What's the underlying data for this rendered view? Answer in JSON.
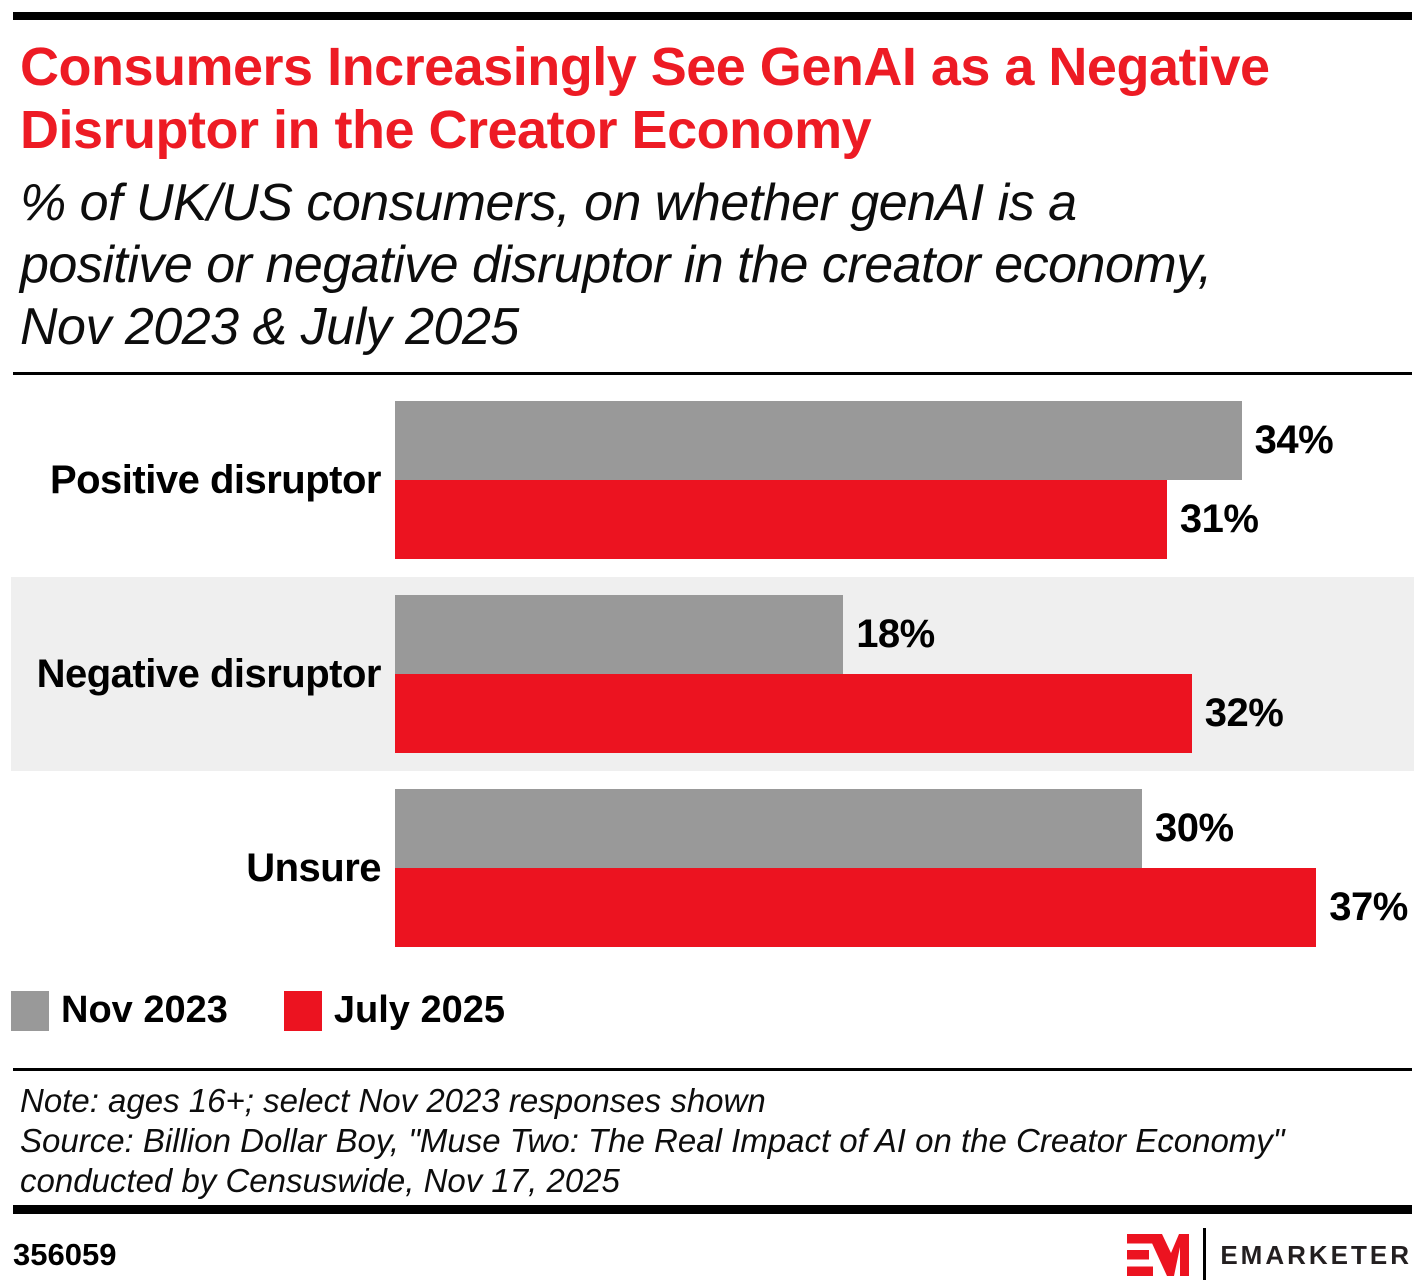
{
  "colors": {
    "red": "#EC1320",
    "gray": "#999999",
    "row_band": "#EFEFEF",
    "title_red": "#ED1B24",
    "text": "#000000",
    "wordmark": "#231F20"
  },
  "header": {
    "title_lines": [
      "Consumers Increasingly See GenAI as a Negative",
      "Disruptor in the Creator Economy"
    ],
    "subtitle_lines": [
      "% of UK/US consumers, on whether genAI is a",
      "positive or negative disruptor in the creator economy,",
      "Nov 2023 & July 2025"
    ]
  },
  "chart_data": {
    "type": "bar",
    "orientation": "horizontal",
    "title": "Consumers Increasingly See GenAI as a Negative Disruptor in the Creator Economy",
    "subtitle": "% of UK/US consumers, on whether genAI is a positive or negative disruptor in the creator economy, Nov 2023 & July 2025",
    "categories": [
      "Positive disruptor",
      "Negative disruptor",
      "Unsure"
    ],
    "series": [
      {
        "name": "Nov 2023",
        "color": "#999999",
        "values": [
          34,
          18,
          30
        ]
      },
      {
        "name": "July 2025",
        "color": "#EC1320",
        "values": [
          31,
          32,
          37
        ]
      }
    ],
    "unit": "%",
    "value_labels": true,
    "xlim": [
      0,
      40
    ],
    "grid": false,
    "legend_position": "bottom",
    "shaded_row_index": 1
  },
  "notes_lines": [
    "Note: ages 16+; select Nov 2023 responses shown",
    "Source: Billion Dollar Boy, \"Muse Two: The Real Impact of AI on the Creator Economy\"",
    "conducted by Censuswide, Nov 17, 2025"
  ],
  "footer": {
    "chart_id": "356059",
    "brand_wordmark": "EMARKETER",
    "logo": "emarketer-em-mark"
  }
}
